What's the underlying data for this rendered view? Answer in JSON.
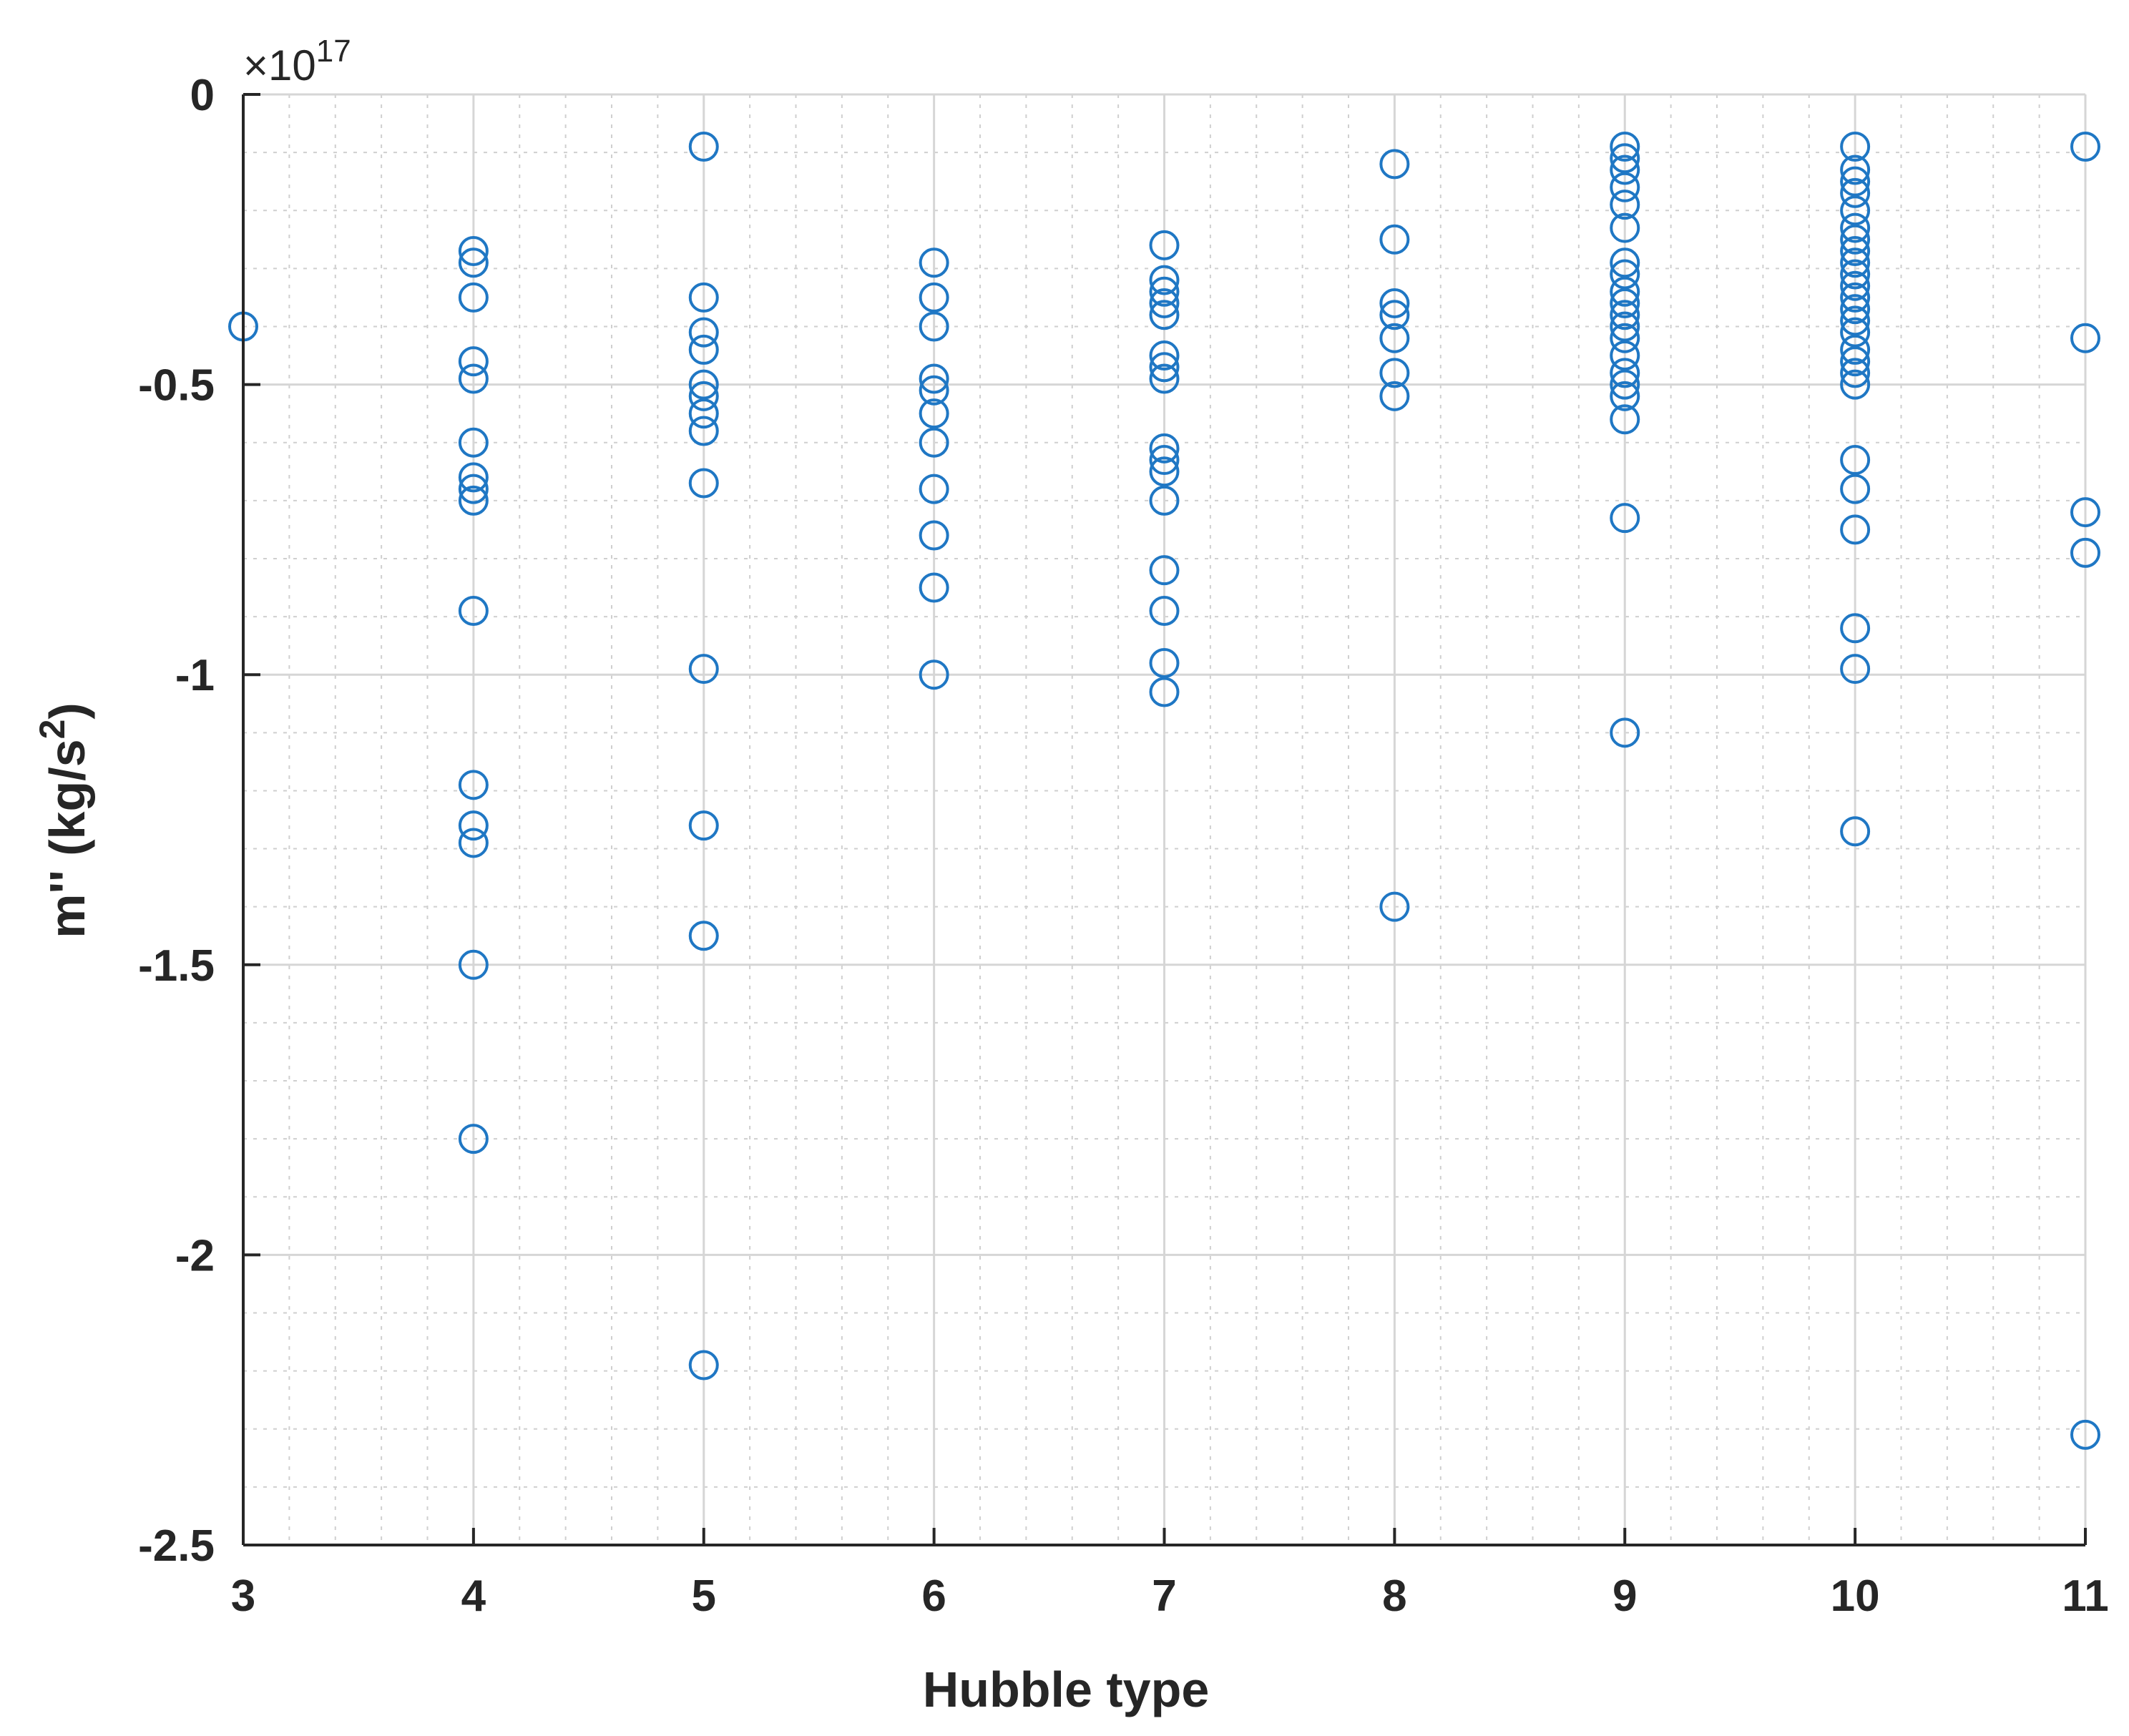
{
  "chart_data": {
    "type": "scatter",
    "xlabel": "Hubble type",
    "ylabel_prefix": "m'' (kg/s",
    "ylabel_sup": "2",
    "ylabel_suffix": ")",
    "y_exponent_label": "×10",
    "y_exponent_sup": "17",
    "xlim": [
      3,
      11
    ],
    "ylim": [
      -2.5,
      0
    ],
    "x_ticks": [
      3,
      4,
      5,
      6,
      7,
      8,
      9,
      10,
      11
    ],
    "x_tick_labels": [
      "3",
      "4",
      "5",
      "6",
      "7",
      "8",
      "9",
      "10",
      "11"
    ],
    "y_ticks": [
      0,
      -0.5,
      -1,
      -1.5,
      -2,
      -2.5
    ],
    "y_tick_labels": [
      "0",
      "-0.5",
      "-1",
      "-1.5",
      "-2",
      "-2.5"
    ],
    "grid": "on (major and minor)",
    "marker": "open circle",
    "marker_color": "#1f77c4",
    "points": [
      {
        "x": 3,
        "y": -0.4
      },
      {
        "x": 4,
        "y": -0.27
      },
      {
        "x": 4,
        "y": -0.29
      },
      {
        "x": 4,
        "y": -0.35
      },
      {
        "x": 4,
        "y": -0.46
      },
      {
        "x": 4,
        "y": -0.49
      },
      {
        "x": 4,
        "y": -0.6
      },
      {
        "x": 4,
        "y": -0.66
      },
      {
        "x": 4,
        "y": -0.68
      },
      {
        "x": 4,
        "y": -0.7
      },
      {
        "x": 4,
        "y": -0.89
      },
      {
        "x": 4,
        "y": -1.19
      },
      {
        "x": 4,
        "y": -1.26
      },
      {
        "x": 4,
        "y": -1.29
      },
      {
        "x": 4,
        "y": -1.5
      },
      {
        "x": 4,
        "y": -1.8
      },
      {
        "x": 5,
        "y": -0.09
      },
      {
        "x": 5,
        "y": -0.35
      },
      {
        "x": 5,
        "y": -0.41
      },
      {
        "x": 5,
        "y": -0.44
      },
      {
        "x": 5,
        "y": -0.5
      },
      {
        "x": 5,
        "y": -0.52
      },
      {
        "x": 5,
        "y": -0.55
      },
      {
        "x": 5,
        "y": -0.58
      },
      {
        "x": 5,
        "y": -0.67
      },
      {
        "x": 5,
        "y": -0.99
      },
      {
        "x": 5,
        "y": -1.26
      },
      {
        "x": 5,
        "y": -1.45
      },
      {
        "x": 5,
        "y": -2.19
      },
      {
        "x": 6,
        "y": -0.29
      },
      {
        "x": 6,
        "y": -0.35
      },
      {
        "x": 6,
        "y": -0.4
      },
      {
        "x": 6,
        "y": -0.49
      },
      {
        "x": 6,
        "y": -0.51
      },
      {
        "x": 6,
        "y": -0.55
      },
      {
        "x": 6,
        "y": -0.6
      },
      {
        "x": 6,
        "y": -0.68
      },
      {
        "x": 6,
        "y": -0.76
      },
      {
        "x": 6,
        "y": -0.85
      },
      {
        "x": 6,
        "y": -1.0
      },
      {
        "x": 7,
        "y": -0.26
      },
      {
        "x": 7,
        "y": -0.32
      },
      {
        "x": 7,
        "y": -0.34
      },
      {
        "x": 7,
        "y": -0.36
      },
      {
        "x": 7,
        "y": -0.38
      },
      {
        "x": 7,
        "y": -0.45
      },
      {
        "x": 7,
        "y": -0.47
      },
      {
        "x": 7,
        "y": -0.49
      },
      {
        "x": 7,
        "y": -0.61
      },
      {
        "x": 7,
        "y": -0.63
      },
      {
        "x": 7,
        "y": -0.65
      },
      {
        "x": 7,
        "y": -0.7
      },
      {
        "x": 7,
        "y": -0.82
      },
      {
        "x": 7,
        "y": -0.89
      },
      {
        "x": 7,
        "y": -0.98
      },
      {
        "x": 7,
        "y": -1.03
      },
      {
        "x": 8,
        "y": -0.12
      },
      {
        "x": 8,
        "y": -0.25
      },
      {
        "x": 8,
        "y": -0.36
      },
      {
        "x": 8,
        "y": -0.38
      },
      {
        "x": 8,
        "y": -0.42
      },
      {
        "x": 8,
        "y": -0.48
      },
      {
        "x": 8,
        "y": -0.52
      },
      {
        "x": 8,
        "y": -1.4
      },
      {
        "x": 9,
        "y": -0.09
      },
      {
        "x": 9,
        "y": -0.11
      },
      {
        "x": 9,
        "y": -0.13
      },
      {
        "x": 9,
        "y": -0.16
      },
      {
        "x": 9,
        "y": -0.19
      },
      {
        "x": 9,
        "y": -0.23
      },
      {
        "x": 9,
        "y": -0.29
      },
      {
        "x": 9,
        "y": -0.31
      },
      {
        "x": 9,
        "y": -0.34
      },
      {
        "x": 9,
        "y": -0.36
      },
      {
        "x": 9,
        "y": -0.38
      },
      {
        "x": 9,
        "y": -0.4
      },
      {
        "x": 9,
        "y": -0.42
      },
      {
        "x": 9,
        "y": -0.45
      },
      {
        "x": 9,
        "y": -0.48
      },
      {
        "x": 9,
        "y": -0.5
      },
      {
        "x": 9,
        "y": -0.52
      },
      {
        "x": 9,
        "y": -0.56
      },
      {
        "x": 9,
        "y": -0.73
      },
      {
        "x": 9,
        "y": -1.1
      },
      {
        "x": 10,
        "y": -0.09
      },
      {
        "x": 10,
        "y": -0.13
      },
      {
        "x": 10,
        "y": -0.15
      },
      {
        "x": 10,
        "y": -0.17
      },
      {
        "x": 10,
        "y": -0.2
      },
      {
        "x": 10,
        "y": -0.23
      },
      {
        "x": 10,
        "y": -0.25
      },
      {
        "x": 10,
        "y": -0.27
      },
      {
        "x": 10,
        "y": -0.29
      },
      {
        "x": 10,
        "y": -0.31
      },
      {
        "x": 10,
        "y": -0.33
      },
      {
        "x": 10,
        "y": -0.35
      },
      {
        "x": 10,
        "y": -0.37
      },
      {
        "x": 10,
        "y": -0.39
      },
      {
        "x": 10,
        "y": -0.41
      },
      {
        "x": 10,
        "y": -0.44
      },
      {
        "x": 10,
        "y": -0.46
      },
      {
        "x": 10,
        "y": -0.48
      },
      {
        "x": 10,
        "y": -0.5
      },
      {
        "x": 10,
        "y": -0.63
      },
      {
        "x": 10,
        "y": -0.68
      },
      {
        "x": 10,
        "y": -0.75
      },
      {
        "x": 10,
        "y": -0.92
      },
      {
        "x": 10,
        "y": -0.99
      },
      {
        "x": 10,
        "y": -1.27
      },
      {
        "x": 11,
        "y": -0.09
      },
      {
        "x": 11,
        "y": -0.42
      },
      {
        "x": 11,
        "y": -0.72
      },
      {
        "x": 11,
        "y": -0.79
      },
      {
        "x": 11,
        "y": -2.31
      }
    ]
  }
}
